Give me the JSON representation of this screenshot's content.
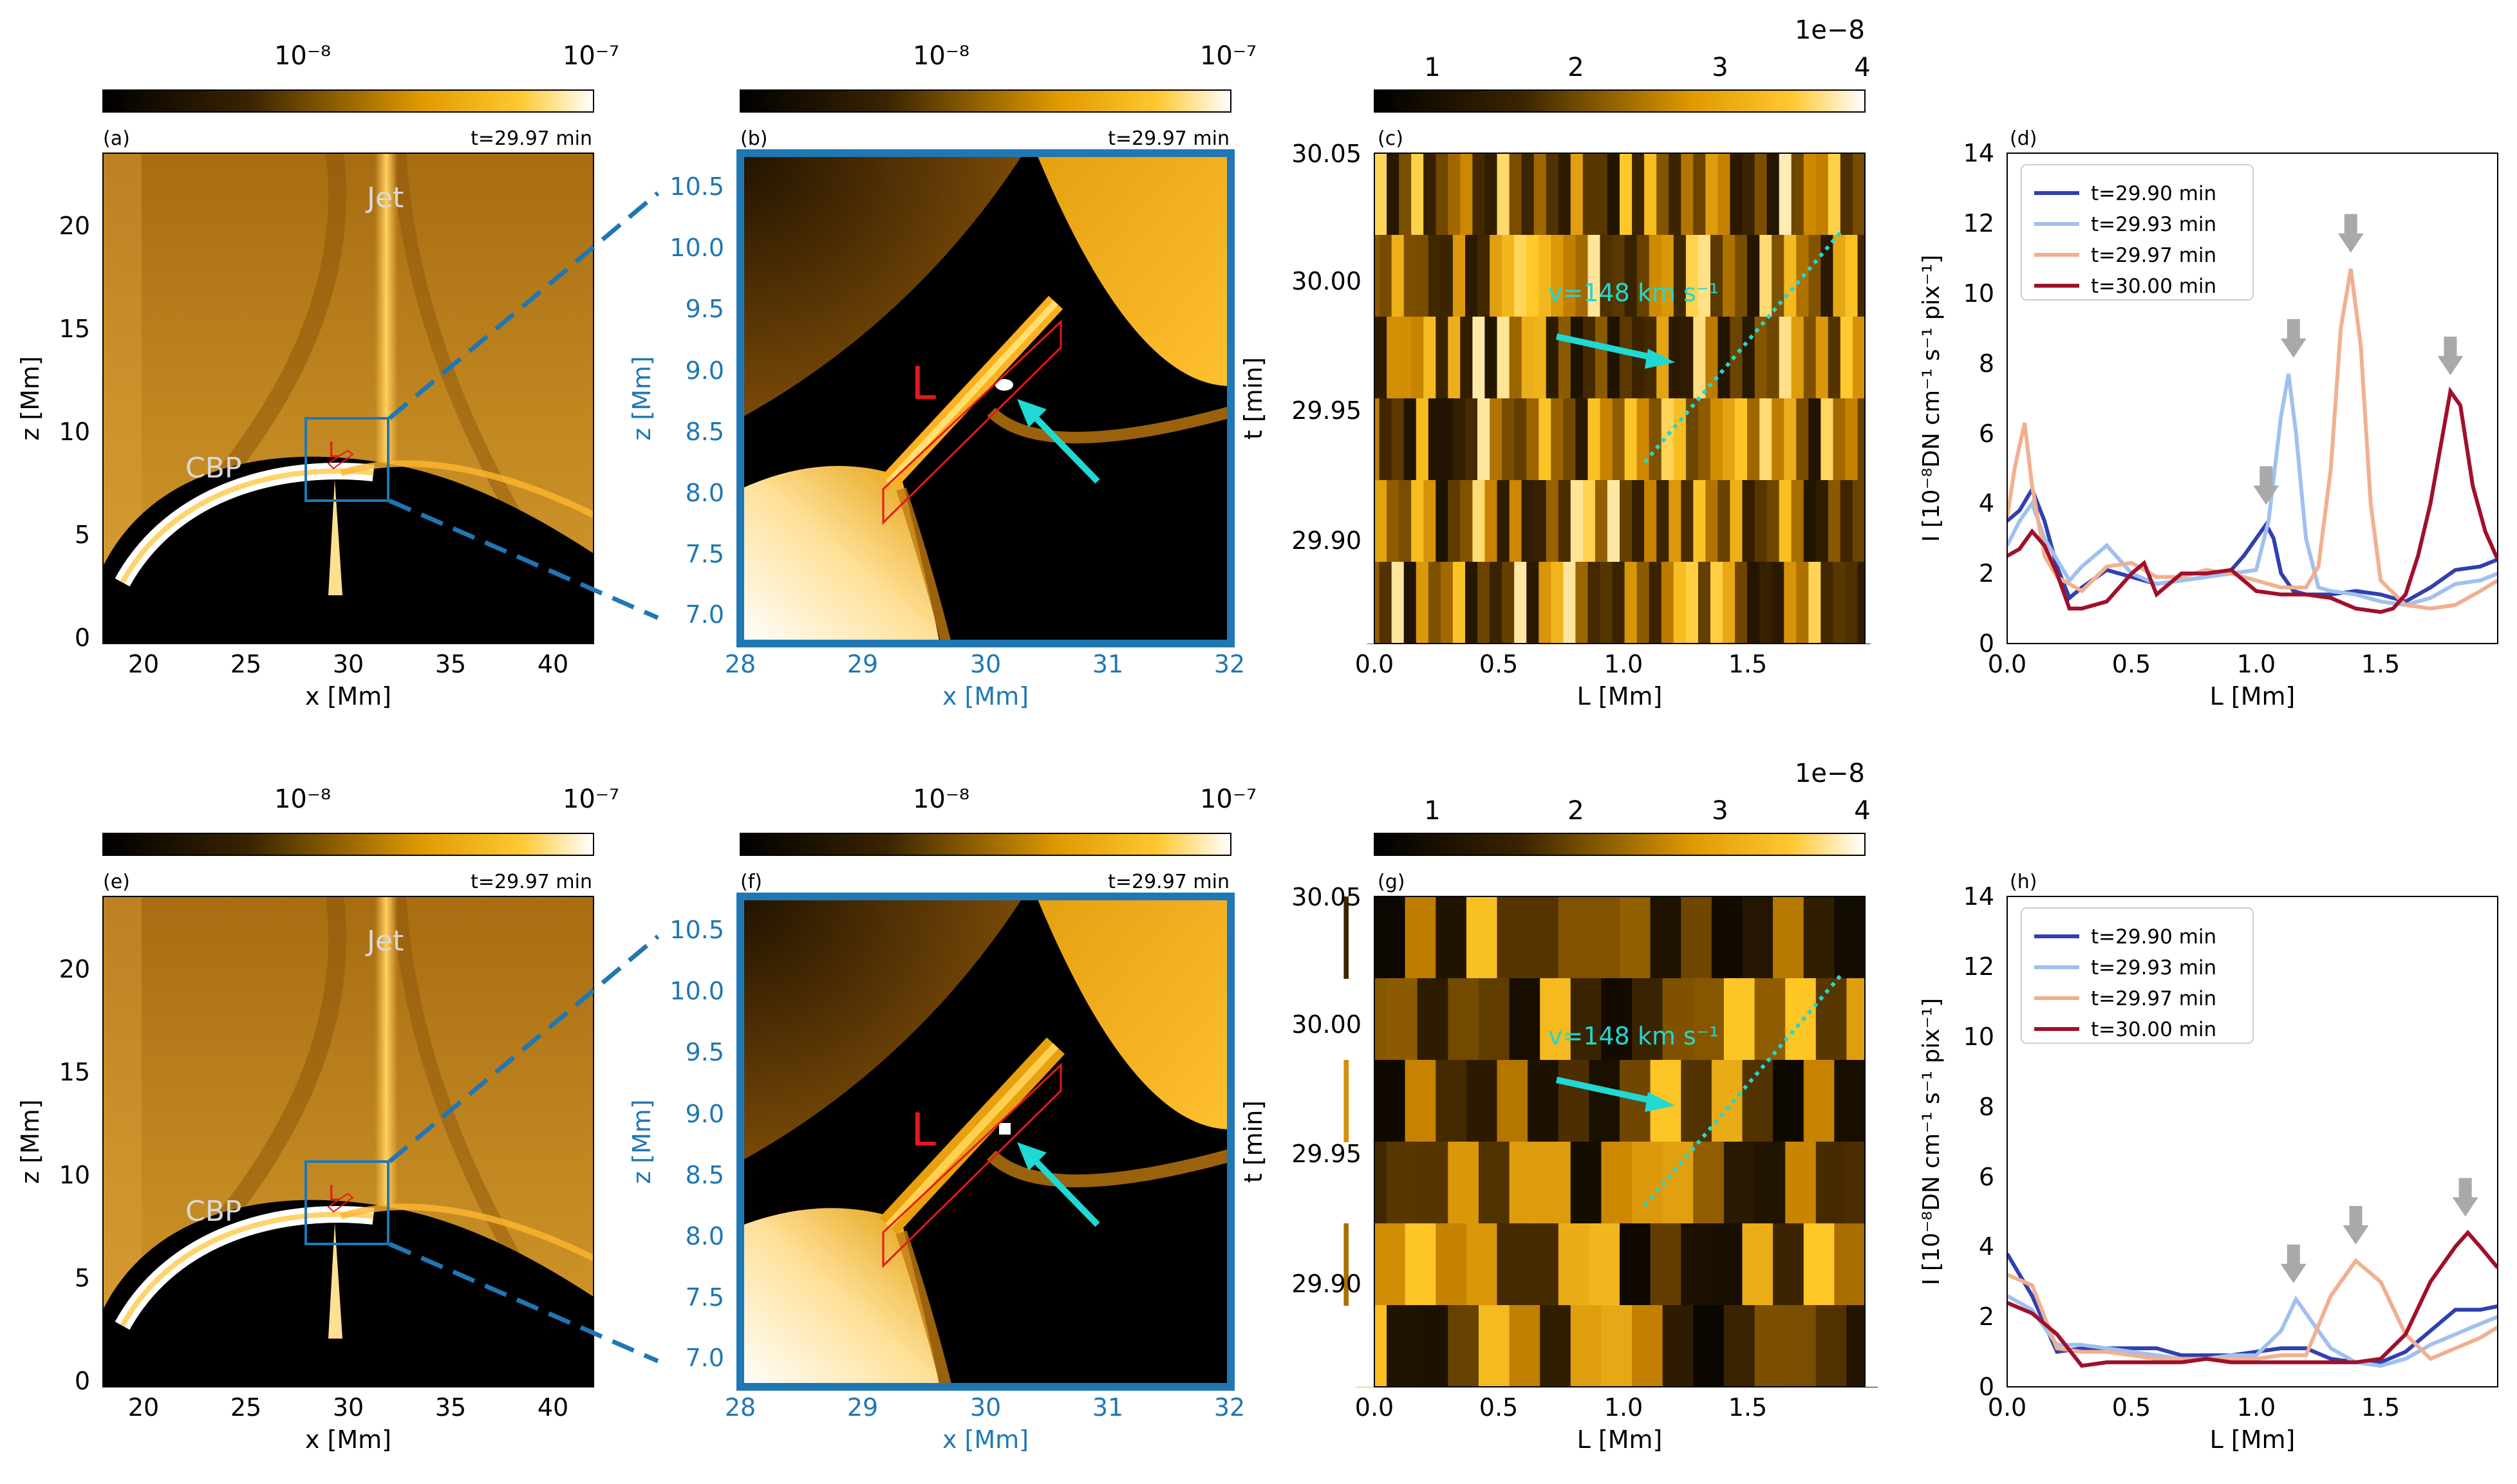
{
  "top_row": {
    "a": {
      "label": "(a)",
      "time": "t=29.97 min",
      "cb_ticks": [
        "10⁻⁸",
        "10⁻⁷"
      ],
      "xlabel": "x [Mm]",
      "ylabel": "z [Mm]",
      "xticks": [
        "20",
        "25",
        "30",
        "35",
        "40"
      ],
      "yticks": [
        "0",
        "5",
        "10",
        "15",
        "20"
      ],
      "ann_jet": "Jet",
      "ann_cbp": "CBP",
      "ann_L": "L"
    },
    "b": {
      "label": "(b)",
      "time": "t=29.97 min",
      "cb_ticks": [
        "10⁻⁸",
        "10⁻⁷"
      ],
      "xlabel": "x [Mm]",
      "ylabel": "z [Mm]",
      "xticks": [
        "28",
        "29",
        "30",
        "31",
        "32"
      ],
      "yticks": [
        "7.0",
        "7.5",
        "8.0",
        "8.5",
        "9.0",
        "9.5",
        "10.0",
        "10.5"
      ],
      "ann_L": "L"
    },
    "c": {
      "label": "(c)",
      "cb_ticks": [
        "1",
        "2",
        "3",
        "4"
      ],
      "cb_exp": "1e−8",
      "xlabel": "L [Mm]",
      "ylabel": "t [min]",
      "xticks": [
        "0.0",
        "0.5",
        "1.0",
        "1.5"
      ],
      "yticks": [
        "29.90",
        "29.95",
        "30.00",
        "30.05"
      ],
      "vel": "v=148 km s⁻¹"
    },
    "d": {
      "label": "(d)",
      "xlabel": "L [Mm]",
      "ylabel": "I [10⁻⁸DN cm⁻¹ s⁻¹ pix⁻¹]",
      "xticks": [
        "0.0",
        "0.5",
        "1.0",
        "1.5"
      ],
      "yticks": [
        "0",
        "2",
        "4",
        "6",
        "8",
        "10",
        "12",
        "14"
      ]
    }
  },
  "bottom_row": {
    "e": {
      "label": "(e)",
      "time": "t=29.97 min",
      "cb_ticks": [
        "10⁻⁸",
        "10⁻⁷"
      ],
      "xlabel": "x [Mm]",
      "ylabel": "z [Mm]",
      "xticks": [
        "20",
        "25",
        "30",
        "35",
        "40"
      ],
      "yticks": [
        "0",
        "5",
        "10",
        "15",
        "20"
      ],
      "ann_jet": "Jet",
      "ann_cbp": "CBP",
      "ann_L": "L"
    },
    "f": {
      "label": "(f)",
      "time": "t=29.97 min",
      "cb_ticks": [
        "10⁻⁸",
        "10⁻⁷"
      ],
      "xlabel": "x [Mm]",
      "ylabel": "z [Mm]",
      "xticks": [
        "28",
        "29",
        "30",
        "31",
        "32"
      ],
      "yticks": [
        "7.0",
        "7.5",
        "8.0",
        "8.5",
        "9.0",
        "9.5",
        "10.0",
        "10.5"
      ],
      "ann_L": "L"
    },
    "g": {
      "label": "(g)",
      "cb_ticks": [
        "1",
        "2",
        "3",
        "4"
      ],
      "cb_exp": "1e−8",
      "xlabel": "L [Mm]",
      "ylabel": "t [min]",
      "xticks": [
        "0.0",
        "0.5",
        "1.0",
        "1.5"
      ],
      "yticks": [
        "29.90",
        "29.95",
        "30.00",
        "30.05"
      ],
      "vel": "v=148 km s⁻¹"
    },
    "h": {
      "label": "(h)",
      "xlabel": "L [Mm]",
      "ylabel": "I [10⁻⁸DN cm⁻¹ s⁻¹ pix⁻¹]",
      "xticks": [
        "0.0",
        "0.5",
        "1.0",
        "1.5"
      ],
      "yticks": [
        "0",
        "2",
        "4",
        "6",
        "8",
        "10",
        "12",
        "14"
      ]
    }
  },
  "colors": {
    "cmap_dark": "#000000",
    "cmap_mid": "#e8a000",
    "cmap_light": "#ffffff",
    "zoom_box": "#1f77b4",
    "slit": "#e8171a",
    "arrow": "#1fd9d2",
    "ref_arrow": "#a9a9a9"
  },
  "chart_data": [
    {
      "type": "line",
      "panel": "(d)",
      "xlabel": "L [Mm]",
      "ylabel": "I [10⁻⁸DN cm⁻¹ s⁻¹ pix⁻¹]",
      "xlim": [
        0,
        1.97
      ],
      "ylim": [
        0,
        14
      ],
      "legend": "top-left",
      "series": [
        {
          "name": "t=29.90 min",
          "color": "#3040b0",
          "x": [
            0,
            0.05,
            0.1,
            0.15,
            0.2,
            0.25,
            0.3,
            0.4,
            0.5,
            0.6,
            0.7,
            0.8,
            0.9,
            0.95,
            1.0,
            1.04,
            1.07,
            1.1,
            1.15,
            1.2,
            1.3,
            1.4,
            1.5,
            1.6,
            1.7,
            1.8,
            1.9,
            1.97
          ],
          "y": [
            3.5,
            3.8,
            4.4,
            3.5,
            2.2,
            1.3,
            1.6,
            2.1,
            1.9,
            1.7,
            1.8,
            1.9,
            2.1,
            2.5,
            3.0,
            3.4,
            3.0,
            2.0,
            1.5,
            1.4,
            1.4,
            1.5,
            1.4,
            1.2,
            1.6,
            2.1,
            2.2,
            2.4
          ]
        },
        {
          "name": "t=29.93 min",
          "color": "#a0c0f0",
          "x": [
            0,
            0.05,
            0.1,
            0.15,
            0.2,
            0.25,
            0.3,
            0.4,
            0.5,
            0.6,
            0.7,
            0.8,
            0.9,
            1.0,
            1.05,
            1.1,
            1.13,
            1.16,
            1.2,
            1.25,
            1.3,
            1.4,
            1.5,
            1.6,
            1.7,
            1.8,
            1.9,
            1.97
          ],
          "y": [
            2.8,
            3.5,
            4.0,
            3.0,
            2.4,
            1.8,
            2.2,
            2.8,
            2.0,
            1.7,
            1.8,
            1.9,
            2.0,
            2.1,
            3.5,
            6.5,
            7.7,
            6.0,
            3.0,
            1.6,
            1.5,
            1.4,
            1.2,
            1.1,
            1.3,
            1.7,
            1.8,
            2.0
          ]
        },
        {
          "name": "t=29.97 min",
          "color": "#f0b090",
          "x": [
            0,
            0.03,
            0.07,
            0.1,
            0.15,
            0.2,
            0.3,
            0.4,
            0.5,
            0.6,
            0.7,
            0.8,
            0.9,
            1.0,
            1.1,
            1.2,
            1.25,
            1.3,
            1.34,
            1.38,
            1.42,
            1.46,
            1.5,
            1.6,
            1.7,
            1.8,
            1.9,
            1.97
          ],
          "y": [
            3.6,
            5.0,
            6.3,
            4.5,
            2.5,
            1.9,
            1.5,
            2.2,
            2.3,
            1.9,
            1.9,
            2.1,
            2.0,
            1.8,
            1.6,
            1.6,
            2.2,
            5.0,
            9.0,
            10.7,
            8.5,
            4.0,
            1.8,
            1.1,
            1.0,
            1.1,
            1.5,
            1.8
          ]
        },
        {
          "name": "t=30.00 min",
          "color": "#a0102a",
          "x": [
            0,
            0.05,
            0.1,
            0.15,
            0.2,
            0.25,
            0.3,
            0.4,
            0.5,
            0.55,
            0.6,
            0.7,
            0.8,
            0.9,
            1.0,
            1.1,
            1.2,
            1.3,
            1.4,
            1.5,
            1.55,
            1.6,
            1.65,
            1.7,
            1.75,
            1.78,
            1.82,
            1.87,
            1.92,
            1.97
          ],
          "y": [
            2.5,
            2.7,
            3.2,
            2.8,
            2.0,
            1.0,
            1.0,
            1.2,
            2.0,
            2.3,
            1.4,
            2.0,
            2.0,
            2.1,
            1.5,
            1.4,
            1.4,
            1.3,
            1.0,
            0.9,
            1.0,
            1.4,
            2.5,
            4.0,
            6.0,
            7.2,
            6.8,
            4.5,
            3.2,
            2.4
          ]
        }
      ],
      "arrows_at_x": [
        1.04,
        1.15,
        1.38,
        1.78
      ]
    },
    {
      "type": "line",
      "panel": "(h)",
      "xlabel": "L [Mm]",
      "ylabel": "I [10⁻⁸DN cm⁻¹ s⁻¹ pix⁻¹]",
      "xlim": [
        0,
        1.97
      ],
      "ylim": [
        0,
        14
      ],
      "legend": "top-left",
      "series": [
        {
          "name": "t=29.90 min",
          "color": "#3040b0",
          "x": [
            0,
            0.1,
            0.2,
            0.3,
            0.4,
            0.5,
            0.6,
            0.7,
            0.8,
            0.9,
            1.0,
            1.1,
            1.2,
            1.3,
            1.4,
            1.5,
            1.6,
            1.7,
            1.8,
            1.9,
            1.97
          ],
          "y": [
            3.8,
            2.6,
            1.0,
            1.1,
            1.1,
            1.1,
            1.1,
            0.9,
            0.9,
            0.9,
            1.0,
            1.1,
            1.1,
            0.8,
            0.7,
            0.7,
            1.0,
            1.6,
            2.2,
            2.2,
            2.3
          ]
        },
        {
          "name": "t=29.93 min",
          "color": "#a0c0f0",
          "x": [
            0,
            0.1,
            0.2,
            0.3,
            0.4,
            0.5,
            0.6,
            0.7,
            0.8,
            0.9,
            1.0,
            1.1,
            1.16,
            1.2,
            1.3,
            1.4,
            1.5,
            1.6,
            1.7,
            1.8,
            1.9,
            1.97
          ],
          "y": [
            2.6,
            2.2,
            1.2,
            1.2,
            1.1,
            1.0,
            0.9,
            0.8,
            0.8,
            0.9,
            0.9,
            1.6,
            2.5,
            2.1,
            1.1,
            0.7,
            0.6,
            0.8,
            1.2,
            1.5,
            1.8,
            2.0
          ]
        },
        {
          "name": "t=29.97 min",
          "color": "#f0b090",
          "x": [
            0,
            0.1,
            0.2,
            0.3,
            0.4,
            0.5,
            0.6,
            0.7,
            0.8,
            0.9,
            1.0,
            1.1,
            1.2,
            1.3,
            1.4,
            1.5,
            1.6,
            1.7,
            1.8,
            1.9,
            1.97
          ],
          "y": [
            3.2,
            2.9,
            1.1,
            1.0,
            1.0,
            0.9,
            0.8,
            0.8,
            0.8,
            0.8,
            0.8,
            0.9,
            0.9,
            2.6,
            3.6,
            3.0,
            1.5,
            0.8,
            1.1,
            1.4,
            1.7
          ]
        },
        {
          "name": "t=30.00 min",
          "color": "#a0102a",
          "x": [
            0,
            0.1,
            0.2,
            0.3,
            0.4,
            0.5,
            0.6,
            0.7,
            0.8,
            0.9,
            1.0,
            1.1,
            1.2,
            1.3,
            1.4,
            1.5,
            1.6,
            1.7,
            1.8,
            1.85,
            1.9,
            1.97
          ],
          "y": [
            2.4,
            2.1,
            1.5,
            0.6,
            0.7,
            0.7,
            0.7,
            0.7,
            0.8,
            0.7,
            0.7,
            0.7,
            0.7,
            0.7,
            0.7,
            0.8,
            1.5,
            3.0,
            4.0,
            4.4,
            4.0,
            3.4
          ]
        }
      ],
      "arrows_at_x": [
        1.15,
        1.4,
        1.84
      ]
    }
  ]
}
